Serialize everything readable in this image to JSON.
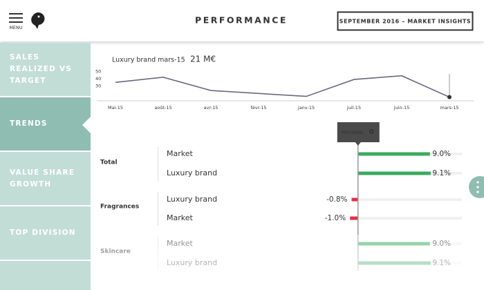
{
  "header": {
    "menu": "MENU",
    "title": "PERFORMANCE",
    "button": "SEPTEMBER 2016 – MARKET INSIGHTS"
  },
  "sidebar": {
    "items": [
      "SALES REALIZED VS TARGET",
      "TRENDS",
      "VALUE SHARE GROWTH",
      "TOP DIVISION"
    ],
    "selected": 1
  },
  "chart_data": [
    {
      "type": "line",
      "title": "Luxury brand mars-15",
      "highlight": "21 M€",
      "categories": [
        "Mai-15",
        "août-15",
        "avr-15",
        "févr-15",
        "janv-15",
        "juil-15",
        "juin-15",
        "mars-15"
      ],
      "values": [
        35,
        42,
        24,
        20,
        16,
        39,
        44,
        15
      ],
      "color": "#6b6680",
      "ylim": [
        10,
        55
      ],
      "yticks": [
        30,
        40,
        50
      ]
    },
    {
      "type": "bar",
      "orientation": "horizontal",
      "xlim": [
        -5,
        13
      ],
      "positive_color": "#3aaa5e",
      "negative_color": "#e0314a",
      "reference": {
        "label": "MOYENNE",
        "value": 0
      },
      "groups": [
        {
          "name": "Total",
          "categories": [
            "Market",
            "Luxury brand"
          ],
          "values": [
            9.0,
            9.1
          ],
          "value_labels": [
            "9.0%",
            "9.1%"
          ]
        },
        {
          "name": "Fragrances",
          "categories": [
            "Luxury brand",
            "Market"
          ],
          "values": [
            -0.8,
            -1.0
          ],
          "value_labels": [
            "-0.8%",
            "-1.0%"
          ]
        },
        {
          "name": "Skincare",
          "categories": [
            "Market",
            "Luxury brand"
          ],
          "values": [
            9.0,
            9.1
          ],
          "value_labels": [
            "9.0%",
            "9.1%"
          ]
        }
      ]
    }
  ]
}
